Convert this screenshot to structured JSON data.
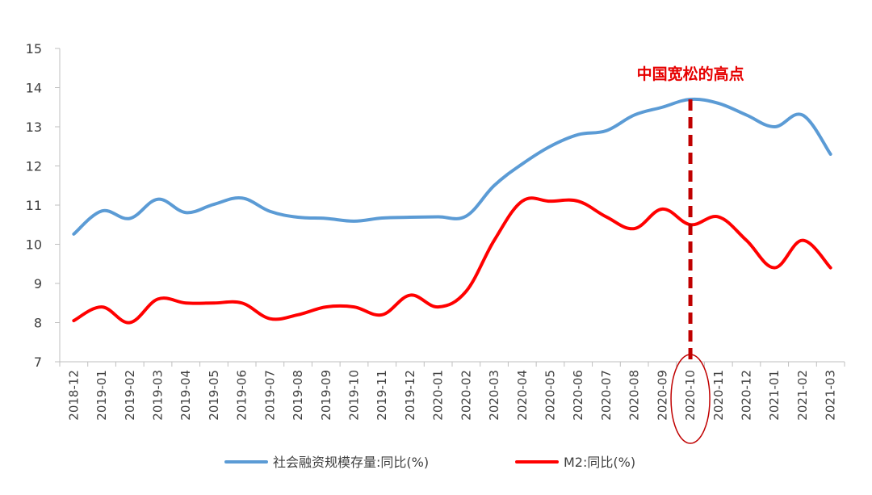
{
  "chart_data": {
    "type": "line",
    "title": "",
    "xlabel": "",
    "ylabel": "",
    "ylim": [
      7,
      15
    ],
    "yticks": [
      7,
      8,
      9,
      10,
      11,
      12,
      13,
      14,
      15
    ],
    "grid": false,
    "legend_position": "bottom",
    "categories": [
      "2018-12",
      "2019-01",
      "2019-02",
      "2019-03",
      "2019-04",
      "2019-05",
      "2019-06",
      "2019-07",
      "2019-08",
      "2019-09",
      "2019-10",
      "2019-11",
      "2019-12",
      "2020-01",
      "2020-02",
      "2020-03",
      "2020-04",
      "2020-05",
      "2020-06",
      "2020-07",
      "2020-08",
      "2020-09",
      "2020-10",
      "2020-11",
      "2020-12",
      "2021-01",
      "2021-02",
      "2021-03"
    ],
    "series": [
      {
        "name": "社会融资规模存量:同比(%)",
        "color": "#5b9bd5",
        "values": [
          10.26,
          10.85,
          10.66,
          11.15,
          10.81,
          11.02,
          11.18,
          10.84,
          10.69,
          10.66,
          10.59,
          10.67,
          10.69,
          10.7,
          10.72,
          11.5,
          12.05,
          12.5,
          12.8,
          12.9,
          13.3,
          13.5,
          13.7,
          13.6,
          13.3,
          13.0,
          13.3,
          12.3
        ]
      },
      {
        "name": "M2:同比(%)",
        "color": "#ff0000",
        "values": [
          8.05,
          8.4,
          8.0,
          8.6,
          8.5,
          8.5,
          8.5,
          8.1,
          8.2,
          8.4,
          8.4,
          8.2,
          8.7,
          8.4,
          8.8,
          10.1,
          11.1,
          11.1,
          11.1,
          10.7,
          10.4,
          10.9,
          10.5,
          10.7,
          10.1,
          9.4,
          10.1,
          9.4
        ]
      }
    ],
    "annotation": {
      "text": "中国宽松的高点",
      "category": "2020-10",
      "color": "#c00000"
    }
  }
}
